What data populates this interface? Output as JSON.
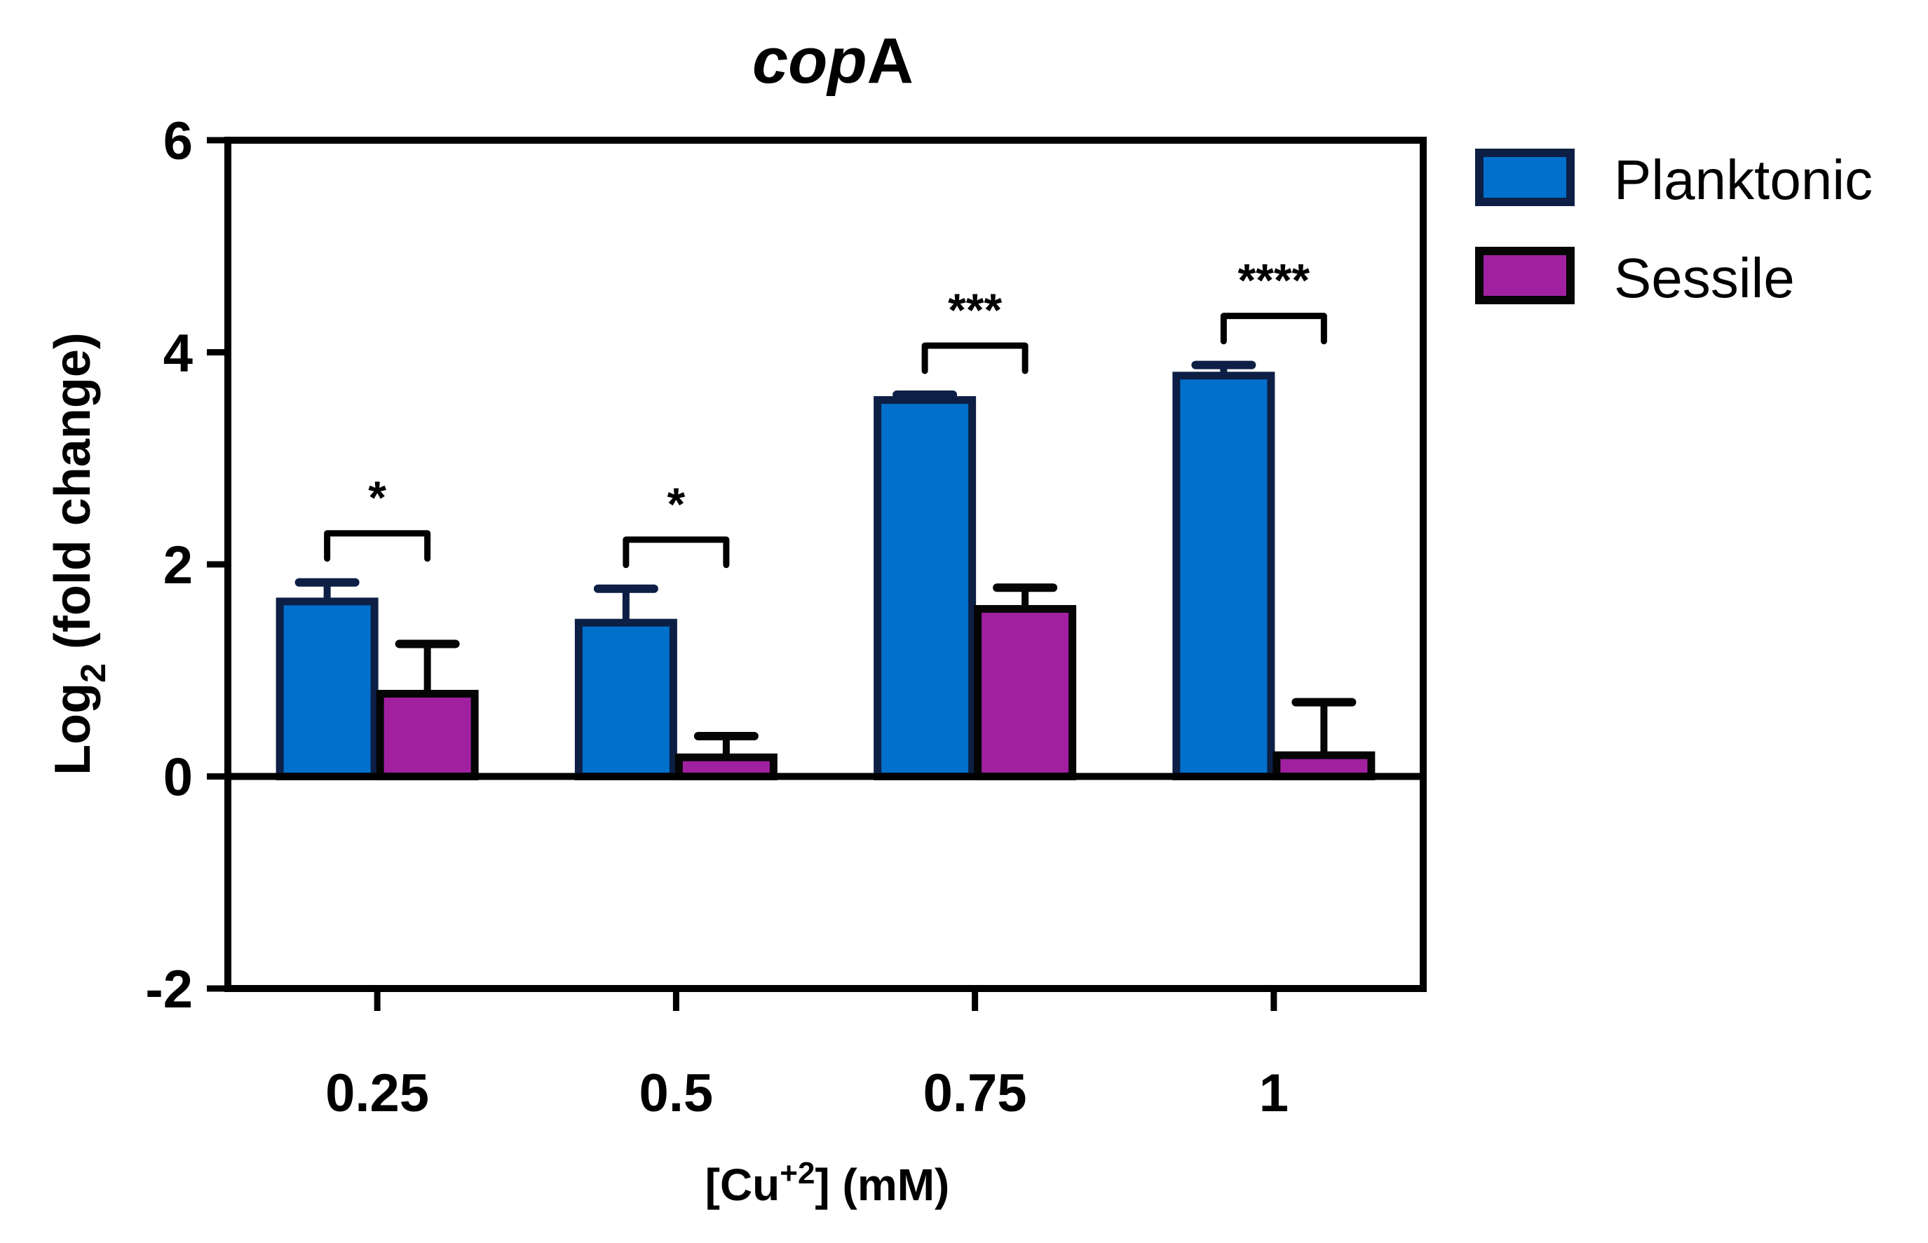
{
  "chart_data": {
    "type": "bar",
    "title": {
      "italic": "cop",
      "normal": "A"
    },
    "ylabel": {
      "main": "Log",
      "sub": "2",
      "rest": " (fold change)"
    },
    "xlabel": {
      "pre": "[Cu",
      "sup": "+2",
      "post": "] (mM)"
    },
    "categories": [
      "0.25",
      "0.5",
      "0.75",
      "1"
    ],
    "ylim": [
      -2,
      6
    ],
    "yticks": [
      -2,
      0,
      2,
      4,
      6
    ],
    "ytick_labels": [
      "-2",
      "0",
      "2",
      "4",
      "6"
    ],
    "series": [
      {
        "name": "Planktonic",
        "color": "#0070cc",
        "edge": "#0d1f45",
        "values": [
          1.65,
          1.45,
          3.55,
          3.78
        ],
        "errors": [
          0.18,
          0.32,
          0.05,
          0.1
        ]
      },
      {
        "name": "Sessile",
        "color": "#a020a0",
        "edge": "#050505",
        "values": [
          0.78,
          0.18,
          1.58,
          0.2
        ],
        "errors": [
          0.47,
          0.2,
          0.2,
          0.5
        ]
      }
    ],
    "significance": [
      "*",
      "*",
      "***",
      "****"
    ],
    "legend_position": "top-right"
  }
}
